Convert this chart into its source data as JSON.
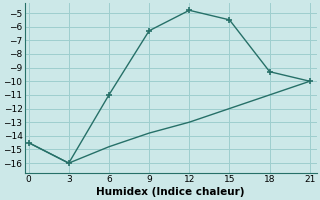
{
  "xlabel": "Humidex (Indice chaleur)",
  "background_color": "#cce8e8",
  "grid_color": "#9ecece",
  "line_color": "#267068",
  "line1_x": [
    0,
    3,
    6,
    9,
    12,
    15,
    18,
    21
  ],
  "line1_y": [
    -14.5,
    -16.0,
    -11.0,
    -6.3,
    -4.8,
    -5.5,
    -9.3,
    -10.0
  ],
  "line2_x": [
    0,
    3,
    6,
    9,
    12,
    15,
    18,
    21
  ],
  "line2_y": [
    -14.5,
    -16.0,
    -14.8,
    -13.8,
    -13.0,
    -12.0,
    -11.0,
    -10.0
  ],
  "xlim": [
    -0.3,
    21.5
  ],
  "ylim": [
    -16.7,
    -4.3
  ],
  "xticks": [
    0,
    3,
    6,
    9,
    12,
    15,
    18,
    21
  ],
  "yticks": [
    -5,
    -6,
    -7,
    -8,
    -9,
    -10,
    -11,
    -12,
    -13,
    -14,
    -15,
    -16
  ],
  "marker": "+",
  "markersize": 4,
  "markeredgewidth": 1.2,
  "linewidth": 1.0,
  "tick_fontsize": 6.5,
  "xlabel_fontsize": 7.5
}
